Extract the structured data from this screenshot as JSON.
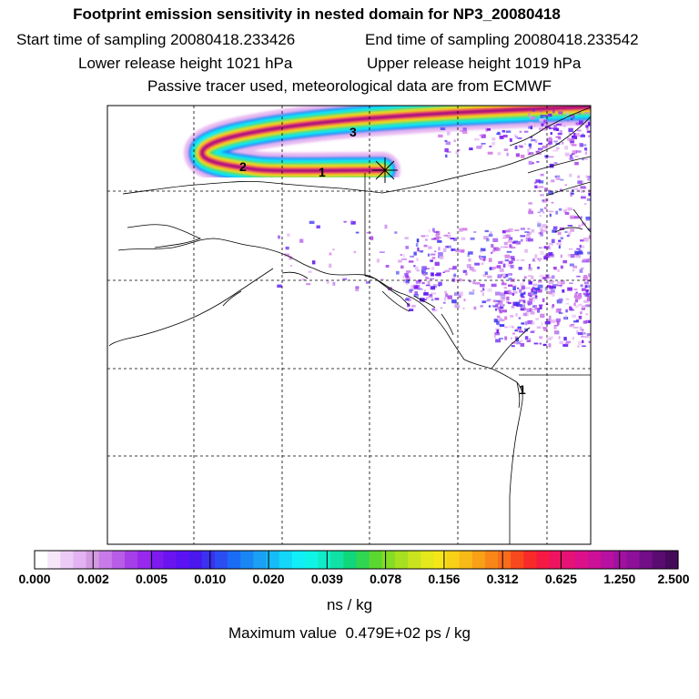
{
  "header": {
    "title": "Footprint emission sensitivity in nested domain for NP3_20080418",
    "start_time": "Start time of sampling 20080418.233426",
    "end_time": "End time of sampling 20080418.233542",
    "lower_release": "Lower release height 1021 hPa",
    "upper_release": "Upper release height 1019 hPa",
    "tracer_info": "Passive tracer used, meteorological data are from ECMWF"
  },
  "map": {
    "markers": [
      "1",
      "2",
      "3"
    ],
    "release_point": "release-point-star"
  },
  "colorbar": {
    "ticks": [
      "0.000",
      "0.002",
      "0.005",
      "0.010",
      "0.020",
      "0.039",
      "0.078",
      "0.156",
      "0.312",
      "0.625",
      "1.250",
      "2.500"
    ],
    "colors": [
      "#ffffff",
      "#f6e6fa",
      "#ecccf6",
      "#e2b2f2",
      "#d49ae0",
      "#c87be8",
      "#b85de6",
      "#a63fe8",
      "#9828ee",
      "#7e1aee",
      "#6a14f0",
      "#5a12f4",
      "#4a18ee",
      "#3a32f0",
      "#2a4ef2",
      "#1a6cf4",
      "#1a86f4",
      "#1aa0f4",
      "#16bcf6",
      "#14d6f8",
      "#10eef8",
      "#10f4e8",
      "#10ecc8",
      "#10e2a6",
      "#10d67c",
      "#30d650",
      "#5ad830",
      "#86dc24",
      "#a6e020",
      "#c8e41e",
      "#e4e81c",
      "#f6e618",
      "#f8d016",
      "#f8ba16",
      "#f8a016",
      "#f88618",
      "#f86c1c",
      "#f8481e",
      "#f82a2a",
      "#f41a44",
      "#ee1460",
      "#e61276",
      "#dc108a",
      "#cc1098",
      "#b810a0",
      "#a210a0",
      "#8c109a",
      "#720e88",
      "#5a0c70",
      "#460a5a"
    ],
    "units": "ns / kg",
    "max_value": "Maximum value  0.479E+02 ps / kg"
  }
}
